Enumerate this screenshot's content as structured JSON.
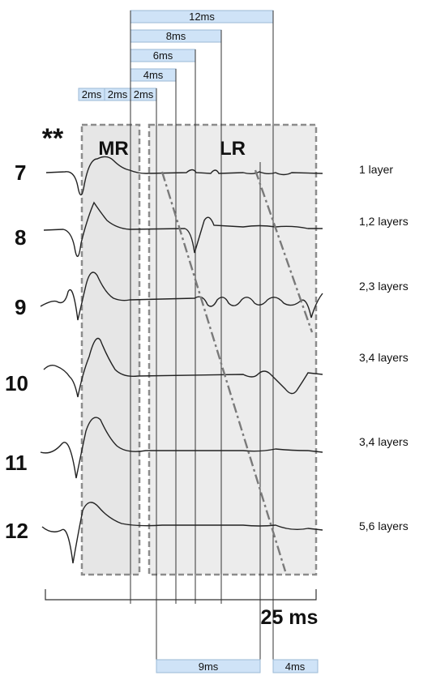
{
  "marker": "**",
  "regions": {
    "mr": "MR",
    "lr": "LR"
  },
  "timing_bars": {
    "b12": "12ms",
    "b8": "8ms",
    "b6": "6ms",
    "b4": "4ms",
    "b2a": "2ms",
    "b2b": "2ms",
    "b2c": "2ms"
  },
  "bottom_bars": {
    "b9": "9ms",
    "b4": "4ms"
  },
  "scale_label": "25 ms",
  "rows": [
    {
      "number": "7",
      "layers": "1 layer"
    },
    {
      "number": "8",
      "layers": "1,2 layers"
    },
    {
      "number": "9",
      "layers": "2,3 layers"
    },
    {
      "number": "10",
      "layers": "3,4 layers"
    },
    {
      "number": "11",
      "layers": "3,4 layers"
    },
    {
      "number": "12",
      "layers": "5,6 layers"
    }
  ],
  "colors": {
    "bar_fill": "#cfe3f7",
    "region_fill": "#e9e9e9",
    "region_border": "#8c8c8c",
    "dash_line": "#777777"
  }
}
